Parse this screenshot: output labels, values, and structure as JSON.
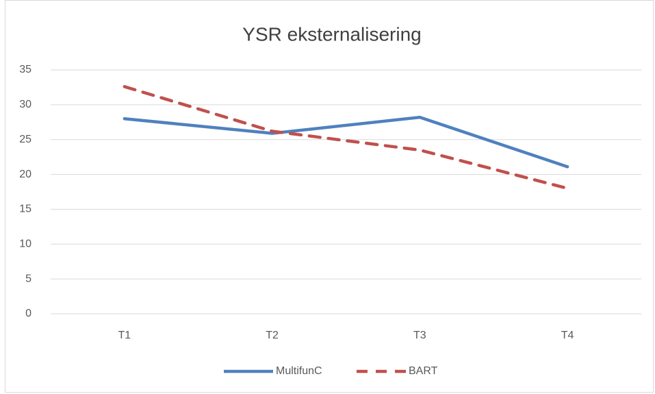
{
  "chart_data": {
    "type": "line",
    "title": "YSR eksternalisering",
    "categories": [
      "T1",
      "T2",
      "T3",
      "T4"
    ],
    "series": [
      {
        "name": "MultifunC",
        "color": "#4f81bd",
        "values": [
          28.0,
          25.9,
          28.2,
          21.1
        ]
      },
      {
        "name": "BART",
        "color": "#c0504d",
        "dashed": true,
        "values": [
          32.6,
          26.2,
          23.5,
          18.0
        ]
      }
    ],
    "ylim": [
      0,
      35
    ],
    "yticks": [
      0,
      5,
      10,
      15,
      20,
      25,
      30,
      35
    ],
    "grid": true,
    "legend": "bottom"
  }
}
